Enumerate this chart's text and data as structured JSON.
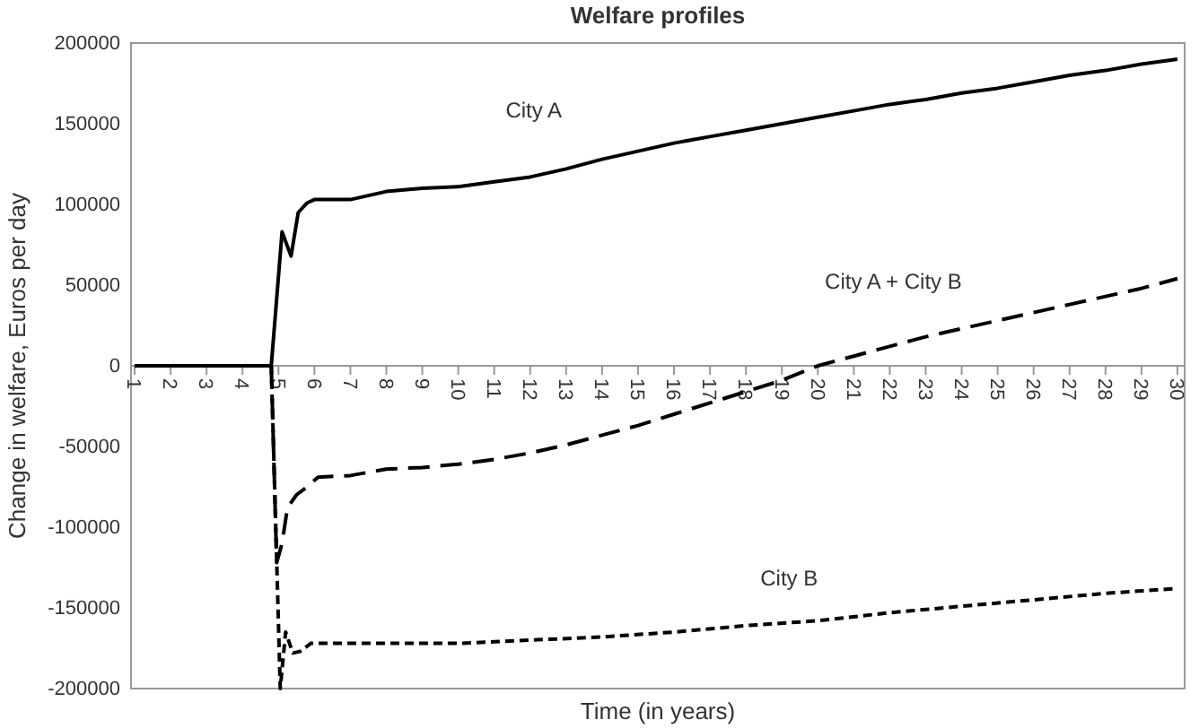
{
  "chart_data": {
    "type": "line",
    "title": "Welfare profiles",
    "xlabel": "Time (in years)",
    "ylabel": "Change in welfare, Euros per day",
    "xlim": [
      0.9,
      30.2
    ],
    "xticks": [
      1,
      2,
      3,
      4,
      5,
      6,
      7,
      8,
      9,
      10,
      11,
      12,
      13,
      14,
      15,
      16,
      17,
      18,
      19,
      20,
      21,
      22,
      23,
      24,
      25,
      26,
      27,
      28,
      29,
      30
    ],
    "ylim": [
      -200000,
      200000
    ],
    "yticks": [
      -200000,
      -150000,
      -100000,
      -50000,
      0,
      50000,
      100000,
      150000,
      200000
    ],
    "grid": false,
    "marker": "none",
    "series": [
      {
        "name": "City A",
        "color": "#000000",
        "line_style": "solid",
        "x": [
          1,
          4.8,
          5.1,
          5.35,
          5.55,
          5.8,
          6,
          7,
          8,
          9,
          10,
          11,
          12,
          13,
          14,
          15,
          16,
          17,
          18,
          19,
          20,
          21,
          22,
          23,
          24,
          25,
          26,
          27,
          28,
          29,
          30
        ],
        "values": [
          0,
          0,
          83000,
          68000,
          95000,
          101000,
          103000,
          103000,
          108000,
          110000,
          111000,
          114000,
          117000,
          122000,
          128000,
          133000,
          138000,
          142000,
          146000,
          150000,
          154000,
          158000,
          162000,
          165000,
          169000,
          172000,
          176000,
          180000,
          183000,
          187000,
          190000
        ]
      },
      {
        "name": "City A + City B",
        "color": "#000000",
        "line_style": "dashed",
        "x": [
          4.8,
          4.95,
          5.1,
          5.25,
          5.5,
          5.8,
          6.1,
          7,
          8,
          9,
          10,
          11,
          12,
          13,
          14,
          15,
          16,
          17,
          18,
          19,
          20,
          21,
          22,
          23,
          24,
          25,
          26,
          27,
          28,
          29,
          30
        ],
        "values": [
          0,
          -122000,
          -110000,
          -88000,
          -80000,
          -75000,
          -69000,
          -68000,
          -64000,
          -63000,
          -61000,
          -58000,
          -54000,
          -49000,
          -43000,
          -37000,
          -30000,
          -23000,
          -16000,
          -9000,
          0,
          6000,
          12000,
          18000,
          23000,
          28000,
          33000,
          38000,
          43000,
          48000,
          54000
        ]
      },
      {
        "name": "City B",
        "color": "#000000",
        "line_style": "dotted",
        "x": [
          4.8,
          5.05,
          5.2,
          5.4,
          5.6,
          5.9,
          8,
          10,
          12,
          14,
          16,
          18,
          20,
          22,
          24,
          26,
          28,
          30
        ],
        "values": [
          0,
          -200000,
          -165000,
          -178000,
          -177000,
          -172000,
          -172000,
          -172000,
          -170000,
          -168000,
          -165000,
          -161000,
          -158000,
          -153000,
          -149000,
          -145000,
          -141000,
          -138000
        ]
      }
    ]
  }
}
